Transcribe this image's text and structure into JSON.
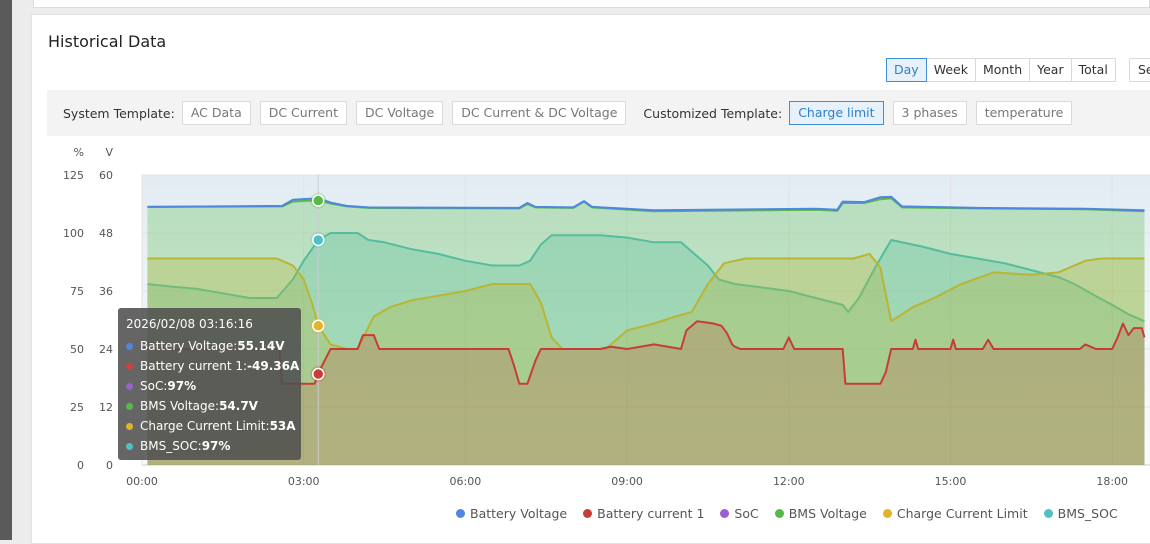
{
  "page": {
    "title": "Historical Data"
  },
  "range_buttons": [
    {
      "label": "Day",
      "active": true
    },
    {
      "label": "Week",
      "active": false
    },
    {
      "label": "Month",
      "active": false
    },
    {
      "label": "Year",
      "active": false
    },
    {
      "label": "Total",
      "active": false
    }
  ],
  "select_stub": {
    "label": "Se"
  },
  "templates": {
    "system_label": "System Template:",
    "system": [
      "AC Data",
      "DC Current",
      "DC Voltage",
      "DC Current & DC Voltage"
    ],
    "custom_label": "Customized Template:",
    "custom": [
      {
        "label": "Charge limit",
        "active": true
      },
      {
        "label": "3 phases",
        "active": false
      },
      {
        "label": "temperature",
        "active": false
      }
    ]
  },
  "tooltip": {
    "time": "2026/02/08 03:16:16",
    "rows": [
      {
        "label": "Battery Voltage:",
        "value": "55.14V",
        "color": "#4f86e0"
      },
      {
        "label": "Battery current 1:",
        "value": "-49.36A",
        "color": "#d2423c"
      },
      {
        "label": "SoC:",
        "value": "97%",
        "color": "#9a5fd0"
      },
      {
        "label": "BMS Voltage:",
        "value": "54.7V",
        "color": "#56b94a"
      },
      {
        "label": "Charge Current Limit:",
        "value": "53A",
        "color": "#e2b42a"
      },
      {
        "label": "BMS_SOC:",
        "value": "97%",
        "color": "#52bfc0"
      }
    ]
  },
  "chart_data": {
    "type": "line",
    "x_unit": "hours",
    "x_ticks": [
      "00:00",
      "03:00",
      "06:00",
      "09:00",
      "12:00",
      "15:00",
      "18:00"
    ],
    "xlim": [
      -0.25,
      18.6
    ],
    "left_axis": {
      "unit_label": "%",
      "ticks": [
        "0",
        "25",
        "50",
        "75",
        "100",
        "125"
      ],
      "ylim": [
        0,
        125
      ]
    },
    "right_axis": {
      "unit_label": "V",
      "ticks": [
        "0",
        "12",
        "24",
        "36",
        "48",
        "60"
      ],
      "ylim": [
        0,
        60
      ]
    },
    "grid": true,
    "legend_position": "bottom",
    "tooltip_x": 3.27,
    "series": [
      {
        "name": "Battery Voltage",
        "color": "#4f86e0",
        "axis": "V",
        "fill": false,
        "points": [
          [
            0.1,
            53.4
          ],
          [
            2.6,
            53.6
          ],
          [
            2.8,
            54.9
          ],
          [
            3.1,
            55.1
          ],
          [
            3.3,
            55.1
          ],
          [
            3.5,
            54.3
          ],
          [
            3.8,
            53.6
          ],
          [
            4.2,
            53.3
          ],
          [
            7.0,
            53.2
          ],
          [
            7.15,
            54.2
          ],
          [
            7.3,
            53.4
          ],
          [
            8.0,
            53.3
          ],
          [
            8.2,
            54.6
          ],
          [
            8.35,
            53.4
          ],
          [
            9.5,
            52.7
          ],
          [
            12.5,
            53.0
          ],
          [
            12.9,
            52.8
          ],
          [
            13.0,
            54.5
          ],
          [
            13.4,
            54.4
          ],
          [
            13.7,
            55.4
          ],
          [
            13.9,
            55.5
          ],
          [
            14.1,
            53.5
          ],
          [
            15.5,
            53.2
          ],
          [
            17.5,
            53.0
          ],
          [
            18.6,
            52.7
          ]
        ]
      },
      {
        "name": "Battery current 1",
        "color": "#c83c36",
        "axis": "pct",
        "fill": true,
        "fill_opacity": 0.2,
        "points": [
          [
            0.1,
            50
          ],
          [
            0.5,
            50
          ],
          [
            2.55,
            50
          ],
          [
            2.6,
            35
          ],
          [
            3.2,
            35
          ],
          [
            3.3,
            41
          ],
          [
            3.5,
            50
          ],
          [
            4.0,
            50
          ],
          [
            4.1,
            56
          ],
          [
            4.3,
            56
          ],
          [
            4.4,
            50
          ],
          [
            6.8,
            50
          ],
          [
            6.9,
            43
          ],
          [
            7.0,
            35
          ],
          [
            7.15,
            35
          ],
          [
            7.3,
            45
          ],
          [
            7.4,
            50
          ],
          [
            8.5,
            50
          ],
          [
            8.7,
            51
          ],
          [
            9.0,
            50
          ],
          [
            9.5,
            52
          ],
          [
            10.0,
            50
          ],
          [
            10.1,
            58
          ],
          [
            10.3,
            62
          ],
          [
            10.6,
            61
          ],
          [
            10.75,
            60
          ],
          [
            10.85,
            57
          ],
          [
            10.95,
            52
          ],
          [
            11.0,
            51
          ],
          [
            11.1,
            50
          ],
          [
            11.9,
            50
          ],
          [
            12.0,
            55
          ],
          [
            12.1,
            50
          ],
          [
            13.0,
            50
          ],
          [
            13.05,
            35
          ],
          [
            13.7,
            35
          ],
          [
            13.8,
            40
          ],
          [
            13.9,
            50
          ],
          [
            14.3,
            50
          ],
          [
            14.35,
            54
          ],
          [
            14.4,
            50
          ],
          [
            15.0,
            50
          ],
          [
            15.05,
            54
          ],
          [
            15.1,
            50
          ],
          [
            15.6,
            50
          ],
          [
            15.7,
            54
          ],
          [
            15.8,
            50
          ],
          [
            17.4,
            50
          ],
          [
            17.5,
            52
          ],
          [
            17.7,
            50
          ],
          [
            18.0,
            50
          ],
          [
            18.1,
            55
          ],
          [
            18.2,
            61
          ],
          [
            18.3,
            56
          ],
          [
            18.4,
            59
          ],
          [
            18.55,
            59
          ],
          [
            18.6,
            55
          ]
        ]
      },
      {
        "name": "SoC",
        "color": "#9a5fd0",
        "axis": "pct",
        "fill": false,
        "points": []
      },
      {
        "name": "BMS Voltage",
        "color": "#56b94a",
        "axis": "V",
        "fill": true,
        "fill_opacity": 0.3,
        "points": [
          [
            0.1,
            53.4
          ],
          [
            2.6,
            53.5
          ],
          [
            2.8,
            54.5
          ],
          [
            3.1,
            54.7
          ],
          [
            3.3,
            54.7
          ],
          [
            3.5,
            54.1
          ],
          [
            3.8,
            53.5
          ],
          [
            4.2,
            53.2
          ],
          [
            7.0,
            53.1
          ],
          [
            7.15,
            54.0
          ],
          [
            7.3,
            53.3
          ],
          [
            8.0,
            53.2
          ],
          [
            8.2,
            54.5
          ],
          [
            8.35,
            53.3
          ],
          [
            9.5,
            52.5
          ],
          [
            12.5,
            52.8
          ],
          [
            12.9,
            52.6
          ],
          [
            13.0,
            54.2
          ],
          [
            13.4,
            54.2
          ],
          [
            13.7,
            55.0
          ],
          [
            13.9,
            55.2
          ],
          [
            14.1,
            53.3
          ],
          [
            15.5,
            53.1
          ],
          [
            17.5,
            52.9
          ],
          [
            18.6,
            52.5
          ]
        ]
      },
      {
        "name": "Charge Current Limit",
        "color": "#e2b42a",
        "axis": "pct",
        "fill": true,
        "fill_opacity": 0.3,
        "points": [
          [
            0.1,
            89
          ],
          [
            2.5,
            89
          ],
          [
            2.8,
            86
          ],
          [
            3.0,
            80
          ],
          [
            3.15,
            70
          ],
          [
            3.27,
            60
          ],
          [
            3.5,
            52
          ],
          [
            3.8,
            50
          ],
          [
            4.0,
            50
          ],
          [
            4.3,
            64
          ],
          [
            4.6,
            68
          ],
          [
            5.0,
            71
          ],
          [
            6.0,
            75
          ],
          [
            6.5,
            78
          ],
          [
            7.2,
            78
          ],
          [
            7.4,
            70
          ],
          [
            7.6,
            55
          ],
          [
            7.8,
            50
          ],
          [
            8.0,
            50
          ],
          [
            8.4,
            50
          ],
          [
            8.6,
            50
          ],
          [
            8.8,
            54
          ],
          [
            9.0,
            58
          ],
          [
            9.5,
            61
          ],
          [
            9.9,
            64
          ],
          [
            10.2,
            66
          ],
          [
            10.5,
            78
          ],
          [
            10.8,
            87
          ],
          [
            11.2,
            89
          ],
          [
            13.2,
            89
          ],
          [
            13.5,
            91
          ],
          [
            13.7,
            85
          ],
          [
            13.9,
            62
          ],
          [
            14.3,
            68
          ],
          [
            14.7,
            72
          ],
          [
            15.2,
            78
          ],
          [
            15.8,
            83
          ],
          [
            16.5,
            82
          ],
          [
            17.0,
            83
          ],
          [
            17.5,
            88
          ],
          [
            17.8,
            89
          ],
          [
            18.6,
            89
          ]
        ]
      },
      {
        "name": "BMS_SOC",
        "color": "#52bfc0",
        "axis": "pct",
        "fill": true,
        "fill_opacity": 0.3,
        "points": [
          [
            0.1,
            78
          ],
          [
            0.5,
            77
          ],
          [
            1.0,
            76
          ],
          [
            1.5,
            74
          ],
          [
            2.0,
            72
          ],
          [
            2.5,
            72
          ],
          [
            2.8,
            80
          ],
          [
            3.0,
            88
          ],
          [
            3.27,
            97
          ],
          [
            3.5,
            100
          ],
          [
            4.0,
            100
          ],
          [
            4.2,
            97
          ],
          [
            4.5,
            96
          ],
          [
            5.0,
            93
          ],
          [
            5.5,
            91
          ],
          [
            6.0,
            88
          ],
          [
            6.5,
            86
          ],
          [
            7.0,
            86
          ],
          [
            7.2,
            88
          ],
          [
            7.4,
            95
          ],
          [
            7.6,
            99
          ],
          [
            8.5,
            99
          ],
          [
            9.0,
            98
          ],
          [
            9.5,
            96
          ],
          [
            10.0,
            96
          ],
          [
            10.5,
            86
          ],
          [
            10.7,
            80
          ],
          [
            11.0,
            78
          ],
          [
            12.0,
            75
          ],
          [
            12.5,
            72
          ],
          [
            13.0,
            69
          ],
          [
            13.1,
            66
          ],
          [
            13.3,
            72
          ],
          [
            13.6,
            85
          ],
          [
            13.9,
            97
          ],
          [
            14.5,
            94
          ],
          [
            15.0,
            91
          ],
          [
            15.5,
            89
          ],
          [
            16.0,
            87
          ],
          [
            16.5,
            84
          ],
          [
            17.0,
            81
          ],
          [
            17.3,
            78
          ],
          [
            17.6,
            74
          ],
          [
            18.0,
            69
          ],
          [
            18.3,
            65
          ],
          [
            18.6,
            62
          ]
        ]
      }
    ]
  }
}
